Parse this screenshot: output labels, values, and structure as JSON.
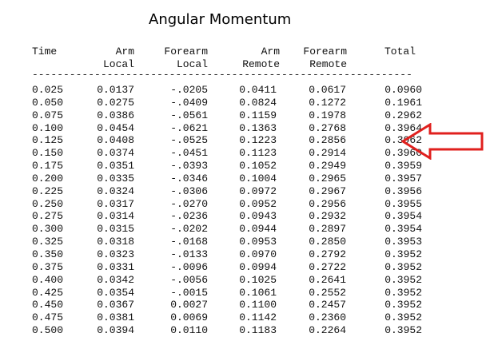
{
  "title": "Angular Momentum",
  "headers": {
    "time": "Time",
    "arm_local_1": "Arm",
    "arm_local_2": "Local",
    "forearm_local_1": "Forearm",
    "forearm_local_2": "Local",
    "arm_remote_1": "Arm",
    "arm_remote_2": "Remote",
    "forearm_remote_1": "Forearm",
    "forearm_remote_2": "Remote",
    "total": "Total"
  },
  "rule": "-------------------------------------------------------------",
  "rows": [
    [
      "0.025",
      "0.0137",
      "-.0205",
      "0.0411",
      "0.0617",
      "0.0960"
    ],
    [
      "0.050",
      "0.0275",
      "-.0409",
      "0.0824",
      "0.1272",
      "0.1961"
    ],
    [
      "0.075",
      "0.0386",
      "-.0561",
      "0.1159",
      "0.1978",
      "0.2962"
    ],
    [
      "0.100",
      "0.0454",
      "-.0621",
      "0.1363",
      "0.2768",
      "0.3964"
    ],
    [
      "0.125",
      "0.0408",
      "-.0525",
      "0.1223",
      "0.2856",
      "0.3962"
    ],
    [
      "0.150",
      "0.0374",
      "-.0451",
      "0.1123",
      "0.2914",
      "0.3960"
    ],
    [
      "0.175",
      "0.0351",
      "-.0393",
      "0.1052",
      "0.2949",
      "0.3959"
    ],
    [
      "0.200",
      "0.0335",
      "-.0346",
      "0.1004",
      "0.2965",
      "0.3957"
    ],
    [
      "0.225",
      "0.0324",
      "-.0306",
      "0.0972",
      "0.2967",
      "0.3956"
    ],
    [
      "0.250",
      "0.0317",
      "-.0270",
      "0.0952",
      "0.2956",
      "0.3955"
    ],
    [
      "0.275",
      "0.0314",
      "-.0236",
      "0.0943",
      "0.2932",
      "0.3954"
    ],
    [
      "0.300",
      "0.0315",
      "-.0202",
      "0.0944",
      "0.2897",
      "0.3954"
    ],
    [
      "0.325",
      "0.0318",
      "-.0168",
      "0.0953",
      "0.2850",
      "0.3953"
    ],
    [
      "0.350",
      "0.0323",
      "-.0133",
      "0.0970",
      "0.2792",
      "0.3952"
    ],
    [
      "0.375",
      "0.0331",
      "-.0096",
      "0.0994",
      "0.2722",
      "0.3952"
    ],
    [
      "0.400",
      "0.0342",
      "-.0056",
      "0.1025",
      "0.2641",
      "0.3952"
    ],
    [
      "0.425",
      "0.0354",
      "-.0015",
      "0.1061",
      "0.2552",
      "0.3952"
    ],
    [
      "0.450",
      "0.0367",
      "0.0027",
      "0.1100",
      "0.2457",
      "0.3952"
    ],
    [
      "0.475",
      "0.0381",
      "0.0069",
      "0.1142",
      "0.2360",
      "0.3952"
    ],
    [
      "0.500",
      "0.0394",
      "0.0110",
      "0.1183",
      "0.2264",
      "0.3952"
    ]
  ],
  "annotation": {
    "icon": "red-arrow-left-icon",
    "highlighted_row": "0.125",
    "color": "#e0201e"
  }
}
